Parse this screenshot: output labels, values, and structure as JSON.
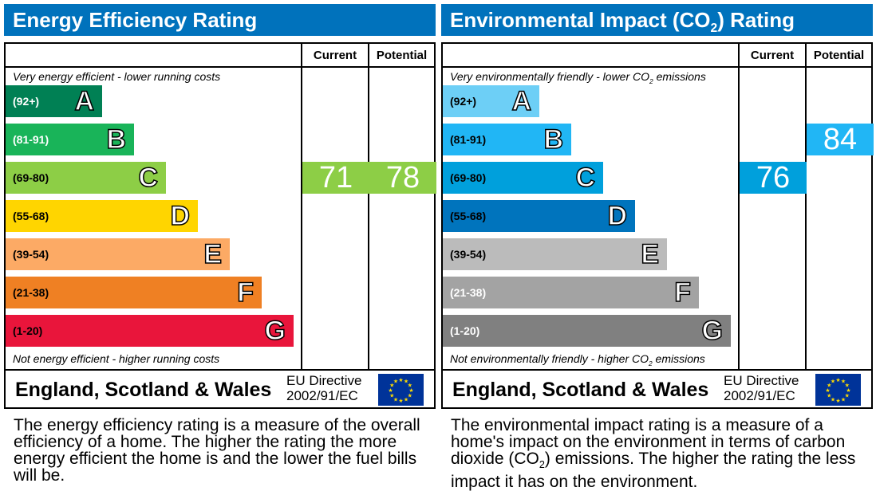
{
  "chart_data": [
    {
      "type": "table",
      "title": "Energy Efficiency Rating",
      "columns": [
        "Current",
        "Potential"
      ],
      "top_note": "Very energy efficient - lower running costs",
      "bottom_note": "Not energy efficient - higher running costs",
      "bands": [
        {
          "letter": "A",
          "range": "(92+)",
          "color": "#008054",
          "label_color": "#ffffff"
        },
        {
          "letter": "B",
          "range": "(81-91)",
          "color": "#19b459",
          "label_color": "#ffffff"
        },
        {
          "letter": "C",
          "range": "(69-80)",
          "color": "#8dce46",
          "label_color": "#000000"
        },
        {
          "letter": "D",
          "range": "(55-68)",
          "color": "#ffd500",
          "label_color": "#000000"
        },
        {
          "letter": "E",
          "range": "(39-54)",
          "color": "#fcaa65",
          "label_color": "#000000"
        },
        {
          "letter": "F",
          "range": "(21-38)",
          "color": "#ef8023",
          "label_color": "#000000"
        },
        {
          "letter": "G",
          "range": "(1-20)",
          "color": "#e9153b",
          "label_color": "#000000"
        }
      ],
      "current": {
        "value": "71",
        "band": "C",
        "color": "#8dce46"
      },
      "potential": {
        "value": "78",
        "band": "C",
        "color": "#8dce46"
      },
      "footer": "England, Scotland & Wales",
      "directive_1": "EU Directive",
      "directive_2": "2002/91/EC",
      "description": "The energy efficiency rating is a measure of the overall efficiency of a home. The higher the rating the more energy efficient the home is and the lower the fuel bills will be."
    },
    {
      "type": "table",
      "title": "Environmental Impact (CO2) Rating",
      "columns": [
        "Current",
        "Potential"
      ],
      "top_note": "Very environmentally friendly - lower CO2 emissions",
      "bottom_note": "Not environmentally friendly - higher CO2 emissions",
      "bands": [
        {
          "letter": "A",
          "range": "(92+)",
          "color": "#6dcff6",
          "label_color": "#000000"
        },
        {
          "letter": "B",
          "range": "(81-91)",
          "color": "#21b6f5",
          "label_color": "#000000"
        },
        {
          "letter": "C",
          "range": "(69-80)",
          "color": "#00a0dc",
          "label_color": "#000000"
        },
        {
          "letter": "D",
          "range": "(55-68)",
          "color": "#0074bd",
          "label_color": "#000000"
        },
        {
          "letter": "E",
          "range": "(39-54)",
          "color": "#bbbbbb",
          "label_color": "#000000"
        },
        {
          "letter": "F",
          "range": "(21-38)",
          "color": "#a3a3a3",
          "label_color": "#ffffff"
        },
        {
          "letter": "G",
          "range": "(1-20)",
          "color": "#808080",
          "label_color": "#ffffff"
        }
      ],
      "current": {
        "value": "76",
        "band": "C",
        "color": "#00a0dc"
      },
      "potential": {
        "value": "84",
        "band": "B",
        "color": "#21b6f5"
      },
      "footer": "England, Scotland & Wales",
      "directive_1": "EU Directive",
      "directive_2": "2002/91/EC",
      "description": "The environmental impact rating is a measure of a home's impact on the environment in terms of carbon dioxide (CO2) emissions. The higher the rating the less impact it has on the environment."
    }
  ]
}
